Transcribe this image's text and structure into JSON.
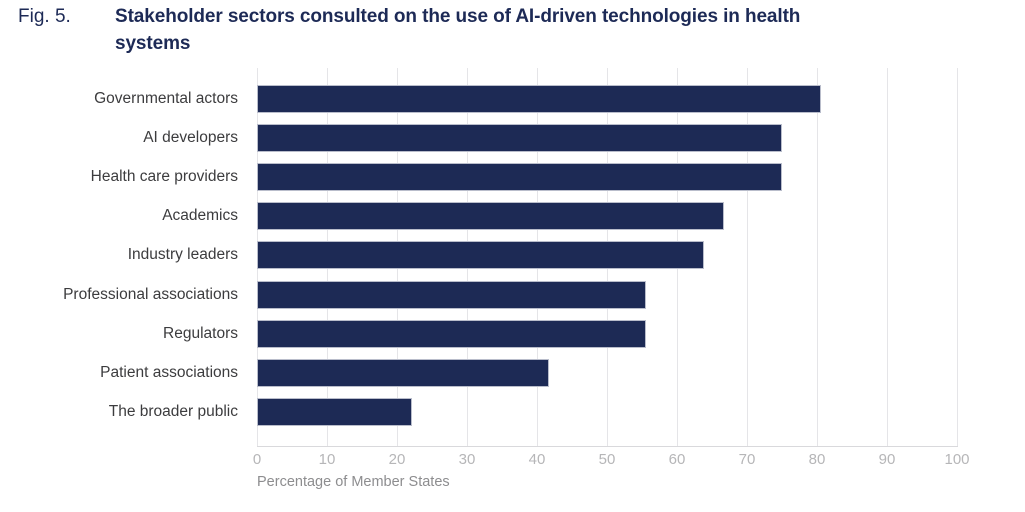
{
  "header": {
    "fig_label": "Fig. 5.",
    "title_line1": "Stakeholder sectors consulted on the use of AI-driven technologies in health",
    "title_line2": "systems"
  },
  "chart_data": {
    "type": "bar",
    "orientation": "horizontal",
    "title": "Fig. 5. Stakeholder sectors consulted on the use of AI-driven technologies in health systems",
    "categories": [
      "Governmental actors",
      "AI developers",
      "Health care providers",
      "Academics",
      "Industry leaders",
      "Professional associations",
      "Regulators",
      "Patient associations",
      "The broader public"
    ],
    "values": [
      80.6,
      75,
      75,
      66.7,
      63.9,
      55.6,
      55.6,
      41.7,
      22.2
    ],
    "xlabel": "Percentage of Member States",
    "ylabel": "",
    "xlim": [
      0,
      100
    ],
    "x_ticks": [
      0,
      10,
      20,
      30,
      40,
      50,
      60,
      70,
      80,
      90,
      100
    ],
    "grid": "vertical-gridlines-on",
    "legend": "none",
    "bar_color": "#1d2a55",
    "bar_border_color": "#b9bdcb",
    "title_color": "#1d2a56",
    "category_label_color": "#3c3c3e",
    "tick_label_color": "#b6b6b8",
    "axis_label_color": "#8d8d8f",
    "gridline_color": "#e5e5e8"
  }
}
